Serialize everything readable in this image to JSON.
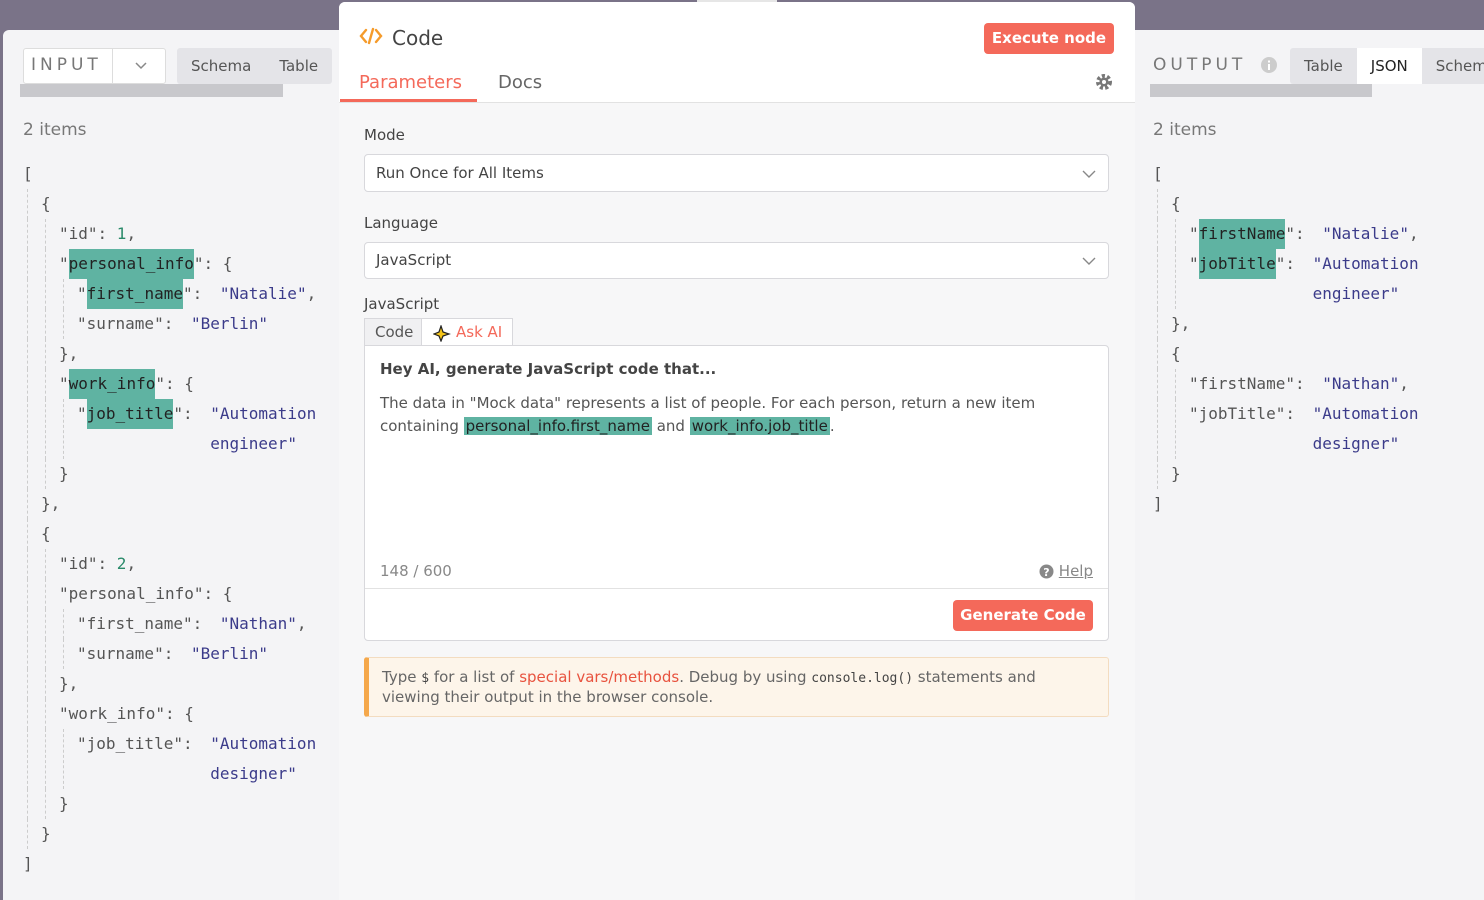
{
  "input": {
    "label": "INPUT",
    "tabs": [
      "Schema",
      "Table"
    ],
    "count": "2 items",
    "lines": [
      [
        "["
      ],
      [
        "{"
      ],
      [
        "\"id\": ",
        {
          "t": "1",
          "s": "num"
        },
        ","
      ],
      [
        "\"",
        {
          "t": "personal_info",
          "s": "hl"
        },
        "\": {"
      ],
      [
        "\"",
        {
          "t": "first_name",
          "s": "hl"
        },
        "\": ",
        {
          "t": "\"Natalie\"",
          "s": "str"
        },
        ","
      ],
      [
        "\"surname\": ",
        {
          "t": "\"Berlin\"",
          "s": "str"
        }
      ],
      [
        "},"
      ],
      [
        "\"",
        {
          "t": "work_info",
          "s": "hl"
        },
        "\": {"
      ],
      [
        "\"",
        {
          "t": "job_title",
          "s": "hl"
        },
        "\": ",
        {
          "t": "\"Automation engineer\"",
          "s": "str"
        }
      ],
      [
        "}"
      ],
      [
        "},"
      ],
      [
        "{"
      ],
      [
        "\"id\": ",
        {
          "t": "2",
          "s": "num"
        },
        ","
      ],
      [
        "\"personal_info\": {"
      ],
      [
        "\"first_name\": ",
        {
          "t": "\"Nathan\"",
          "s": "str"
        },
        ","
      ],
      [
        "\"surname\": ",
        {
          "t": "\"Berlin\"",
          "s": "str"
        }
      ],
      [
        "},"
      ],
      [
        "\"work_info\": {"
      ],
      [
        "\"job_title\": ",
        {
          "t": "\"Automation designer\"",
          "s": "str"
        }
      ],
      [
        "}"
      ],
      [
        "}"
      ],
      [
        "]"
      ]
    ]
  },
  "node": {
    "title": "Code",
    "execute": "Execute node",
    "tabs": [
      "Parameters",
      "Docs"
    ],
    "active_tab": 0,
    "mode": {
      "label": "Mode",
      "value": "Run Once for All Items"
    },
    "language": {
      "label": "Language",
      "value": "JavaScript"
    },
    "editor": {
      "label": "JavaScript",
      "tabs": [
        "Code",
        "Ask AI"
      ],
      "active_tab": 1,
      "heading": "Hey AI, generate JavaScript code that...",
      "prompt": [
        "The data in \"Mock data\" represents a list of people. For each person, return a new item containing ",
        {
          "t": "personal_info.first_name",
          "s": "hl"
        },
        " and ",
        {
          "t": "work_info.job_title",
          "s": "hl"
        },
        "."
      ],
      "counter": "148 / 600",
      "help": "Help",
      "button": "Generate Code"
    },
    "hint": [
      "Type ",
      {
        "t": "$",
        "s": "code"
      },
      " for a list of ",
      {
        "t": "special vars/methods",
        "s": "link"
      },
      ". Debug by using ",
      {
        "t": "console.log()",
        "s": "code"
      },
      " statements and viewing their output in the browser console."
    ]
  },
  "output": {
    "label": "OUTPUT",
    "tabs": [
      "Table",
      "JSON",
      "Schema"
    ],
    "active_tab": 1,
    "count": "2 items",
    "lines": [
      [
        "["
      ],
      [
        "{"
      ],
      [
        "\"",
        {
          "t": "firstName",
          "s": "hl"
        },
        "\": ",
        {
          "t": "\"Natalie\"",
          "s": "str"
        },
        ","
      ],
      [
        "\"",
        {
          "t": "jobTitle",
          "s": "hl"
        },
        "\": ",
        {
          "t": "\"Automation engineer\"",
          "s": "str"
        }
      ],
      [
        "},"
      ],
      [
        "{"
      ],
      [
        "\"firstName\": ",
        {
          "t": "\"Nathan\"",
          "s": "str"
        },
        ","
      ],
      [
        "\"jobTitle\": ",
        {
          "t": "\"Automation designer\"",
          "s": "str"
        }
      ],
      [
        "}"
      ],
      [
        "]"
      ]
    ]
  }
}
